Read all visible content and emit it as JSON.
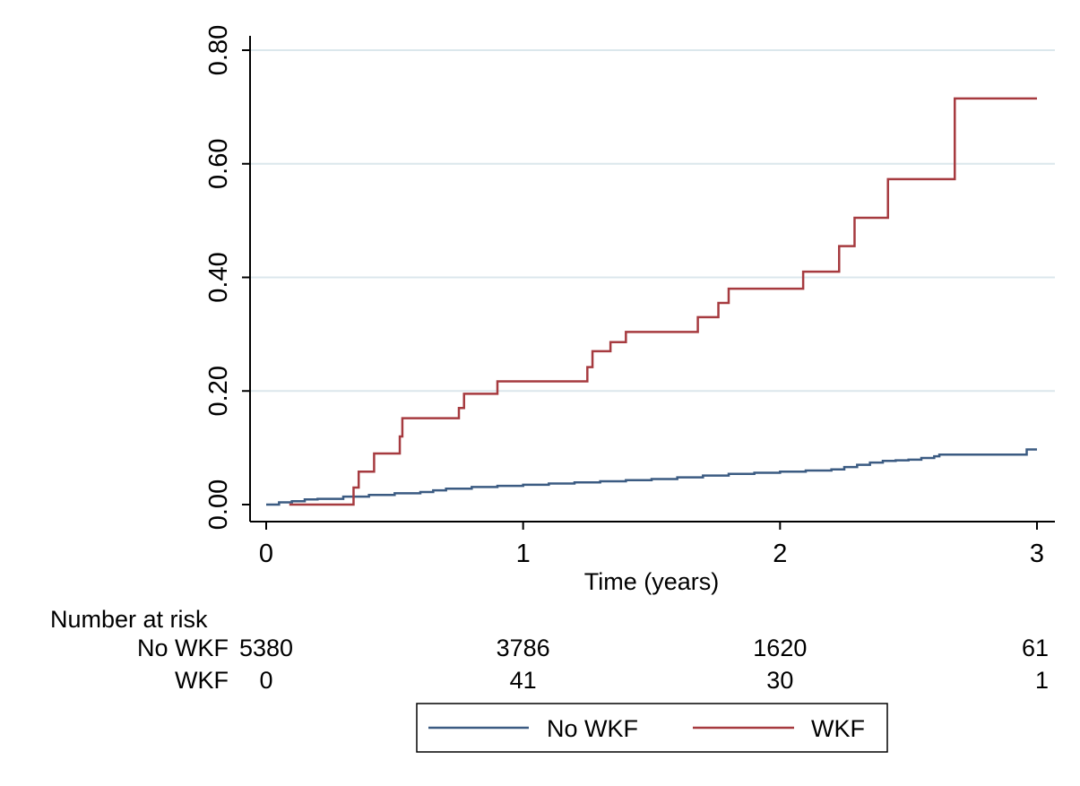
{
  "chart_data": {
    "type": "line",
    "step": true,
    "title": "",
    "xlabel": "Time (years)",
    "ylabel": "",
    "xlim": [
      0,
      3
    ],
    "ylim": [
      0,
      0.8
    ],
    "x_ticks": [
      0,
      1,
      2,
      3
    ],
    "x_tick_labels": [
      "0",
      "1",
      "2",
      "3"
    ],
    "y_ticks": [
      0,
      0.2,
      0.4,
      0.6,
      0.8
    ],
    "y_tick_labels": [
      "0.00",
      "0.20",
      "0.40",
      "0.60",
      "0.80"
    ],
    "y_tick_label_orientation": "rotated-vertical",
    "grid": "horizontal",
    "colors": {
      "No WKF": "#3b5b82",
      "WKF": "#a63a3f",
      "grid": "#dbe7ec",
      "axis": "#000000"
    },
    "series": [
      {
        "name": "No WKF",
        "x": [
          0,
          0.05,
          0.1,
          0.15,
          0.2,
          0.3,
          0.4,
          0.5,
          0.6,
          0.65,
          0.7,
          0.8,
          0.9,
          1.0,
          1.1,
          1.2,
          1.3,
          1.4,
          1.5,
          1.6,
          1.7,
          1.8,
          1.9,
          2.0,
          2.1,
          2.2,
          2.25,
          2.3,
          2.35,
          2.4,
          2.45,
          2.5,
          2.55,
          2.6,
          2.62,
          2.7,
          2.8,
          2.9,
          2.95,
          2.96,
          3.0
        ],
        "y": [
          0,
          0.004,
          0.006,
          0.009,
          0.01,
          0.014,
          0.017,
          0.02,
          0.022,
          0.025,
          0.028,
          0.031,
          0.033,
          0.035,
          0.037,
          0.039,
          0.041,
          0.043,
          0.045,
          0.048,
          0.051,
          0.054,
          0.056,
          0.058,
          0.06,
          0.062,
          0.066,
          0.07,
          0.074,
          0.077,
          0.078,
          0.079,
          0.082,
          0.085,
          0.088,
          0.088,
          0.088,
          0.088,
          0.088,
          0.097,
          0.097
        ]
      },
      {
        "name": "WKF",
        "x": [
          0.09,
          0.33,
          0.34,
          0.36,
          0.42,
          0.52,
          0.53,
          0.75,
          0.77,
          0.9,
          1.25,
          1.27,
          1.29,
          1.34,
          1.4,
          1.68,
          1.76,
          1.8,
          2.09,
          2.23,
          2.29,
          2.42,
          2.68,
          3.0
        ],
        "y": [
          0.0,
          0.0,
          0.03,
          0.058,
          0.09,
          0.12,
          0.152,
          0.17,
          0.195,
          0.217,
          0.242,
          0.27,
          0.27,
          0.286,
          0.304,
          0.33,
          0.355,
          0.38,
          0.41,
          0.455,
          0.505,
          0.573,
          0.715,
          0.715
        ]
      }
    ],
    "risk_table": {
      "title": "Number at risk",
      "columns": [
        0,
        1,
        2,
        3
      ],
      "rows": [
        {
          "label": "No WKF",
          "values": [
            "5380",
            "3786",
            "1620",
            "61"
          ]
        },
        {
          "label": "WKF",
          "values": [
            "0",
            "41",
            "30",
            "1"
          ]
        }
      ]
    },
    "legend": {
      "position": "bottom-center",
      "entries": [
        "No WKF",
        "WKF"
      ]
    }
  }
}
